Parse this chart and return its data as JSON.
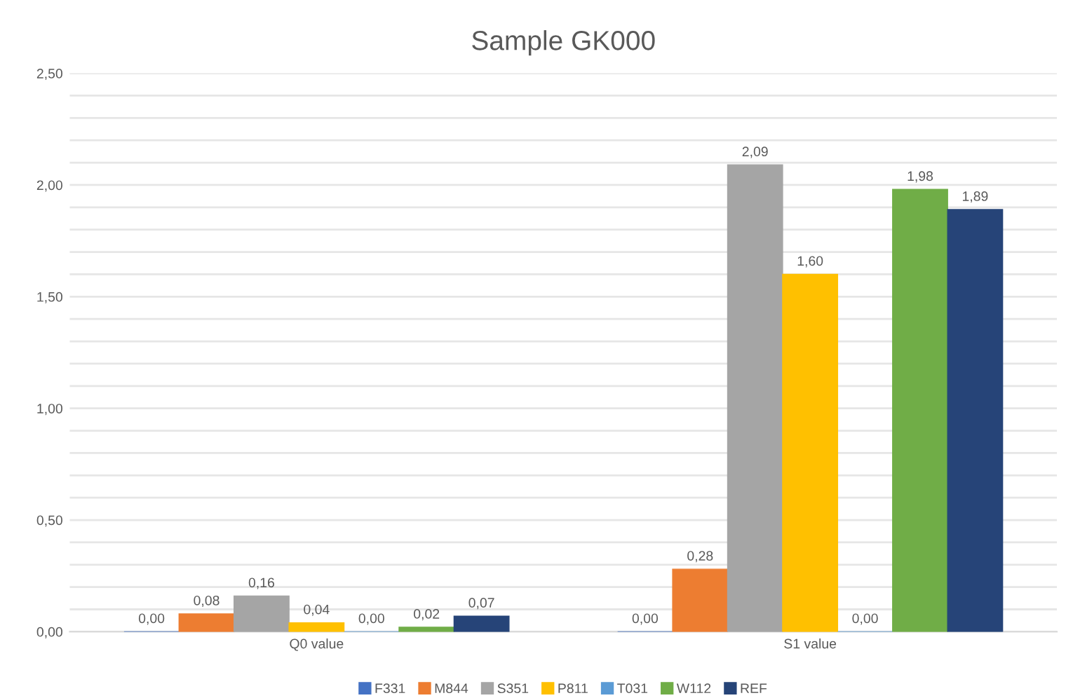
{
  "chart_data": {
    "type": "bar",
    "title": "Sample GK000",
    "categories": [
      "Q0 value",
      "S1 value"
    ],
    "series": [
      {
        "name": "F331",
        "color": "#4472c4",
        "values": [
          0.0,
          0.0
        ],
        "value_labels": [
          "0,00",
          "0,00"
        ]
      },
      {
        "name": "M844",
        "color": "#ed7d31",
        "values": [
          0.08,
          0.28
        ],
        "value_labels": [
          "0,08",
          "0,28"
        ]
      },
      {
        "name": "S351",
        "color": "#a5a5a5",
        "values": [
          0.16,
          2.09
        ],
        "value_labels": [
          "0,16",
          "2,09"
        ]
      },
      {
        "name": "P811",
        "color": "#ffc000",
        "values": [
          0.04,
          1.6
        ],
        "value_labels": [
          "0,04",
          "1,60"
        ]
      },
      {
        "name": "T031",
        "color": "#5b9bd5",
        "values": [
          0.0,
          0.0
        ],
        "value_labels": [
          "0,00",
          "0,00"
        ]
      },
      {
        "name": "W112",
        "color": "#70ad47",
        "values": [
          0.02,
          1.98
        ],
        "value_labels": [
          "0,02",
          "1,98"
        ]
      },
      {
        "name": "REF",
        "color": "#264478",
        "values": [
          0.07,
          1.89
        ],
        "value_labels": [
          "0,07",
          "1,89"
        ]
      }
    ],
    "ylim": [
      0,
      2.5
    ],
    "yticks": [
      {
        "value": 0,
        "label": "0,00"
      },
      {
        "value": 0.1,
        "label": null
      },
      {
        "value": 0.2,
        "label": null
      },
      {
        "value": 0.3,
        "label": null
      },
      {
        "value": 0.4,
        "label": null
      },
      {
        "value": 0.5,
        "label": "0,50"
      },
      {
        "value": 0.6,
        "label": null
      },
      {
        "value": 0.7,
        "label": null
      },
      {
        "value": 0.8,
        "label": null
      },
      {
        "value": 0.9,
        "label": null
      },
      {
        "value": 1.0,
        "label": "1,00"
      },
      {
        "value": 1.1,
        "label": null
      },
      {
        "value": 1.2,
        "label": null
      },
      {
        "value": 1.3,
        "label": null
      },
      {
        "value": 1.4,
        "label": null
      },
      {
        "value": 1.5,
        "label": "1,50"
      },
      {
        "value": 1.6,
        "label": null
      },
      {
        "value": 1.7,
        "label": null
      },
      {
        "value": 1.8,
        "label": null
      },
      {
        "value": 1.9,
        "label": null
      },
      {
        "value": 2.0,
        "label": "2,00"
      },
      {
        "value": 2.1,
        "label": null
      },
      {
        "value": 2.2,
        "label": null
      },
      {
        "value": 2.3,
        "label": null
      },
      {
        "value": 2.4,
        "label": null
      },
      {
        "value": 2.5,
        "label": "2,50"
      }
    ],
    "grid": "y",
    "legend": "bottom"
  }
}
